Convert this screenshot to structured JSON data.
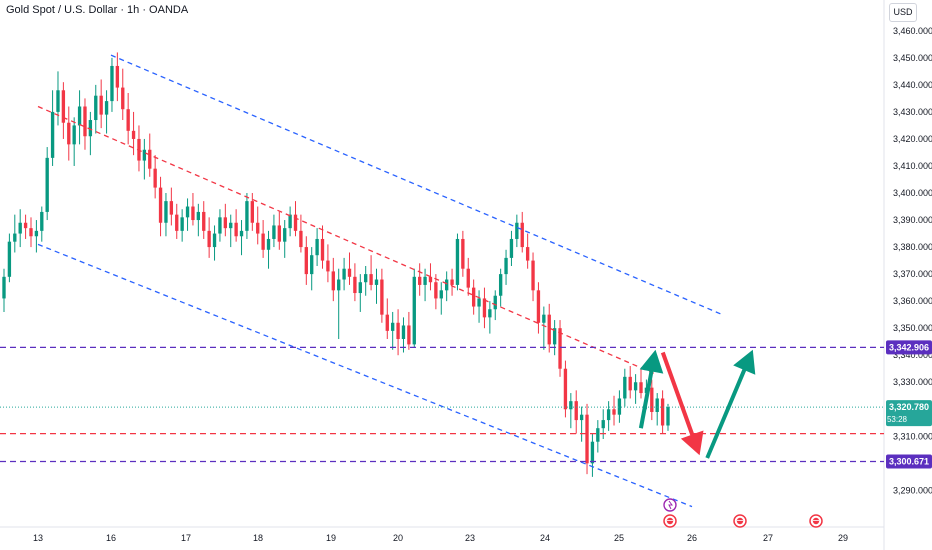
{
  "header": {
    "symbol_title": "Gold Spot / U.S. Dollar · 1h · OANDA",
    "currency": "USD"
  },
  "chart_data": {
    "type": "candlestick",
    "title": "Gold Spot / U.S. Dollar · 1h · OANDA",
    "y_axis": {
      "unit": "USD",
      "ylim": [
        3282,
        3464
      ],
      "ticks": [
        "3,290.000",
        "3,300.000",
        "3,310.000",
        "3,320.000",
        "3,330.000",
        "3,340.000",
        "3,350.000",
        "3,360.000",
        "3,370.000",
        "3,380.000",
        "3,390.000",
        "3,400.000",
        "3,410.000",
        "3,420.000",
        "3,430.000",
        "3,440.000",
        "3,450.000",
        "3,460.000"
      ]
    },
    "x_axis": {
      "ticks": [
        "13",
        "16",
        "17",
        "18",
        "19",
        "20",
        "23",
        "24",
        "25",
        "26",
        "27",
        "29"
      ]
    },
    "price_labels": [
      {
        "value": 3342.906,
        "text": "3,342.906",
        "color": "#5b2fbf"
      },
      {
        "value": 3320.78,
        "text": "3,320.780",
        "sub": "53:28",
        "color": "#26a69a"
      },
      {
        "value": 3300.671,
        "text": "3,300.671",
        "color": "#5b2fbf"
      }
    ],
    "horizontal_lines": [
      {
        "value": 3342.906,
        "color": "#5b2fbf",
        "style": "dashed"
      },
      {
        "value": 3311.0,
        "color": "#f23645",
        "style": "dashed"
      },
      {
        "value": 3300.671,
        "color": "#5b2fbf",
        "style": "dashed"
      },
      {
        "value": 3320.78,
        "color": "#26a69a",
        "style": "dotted"
      }
    ],
    "trend_lines": [
      {
        "name": "channel-top",
        "from": [
          "16",
          3451
        ],
        "to": [
          "26.4",
          3355
        ],
        "color": "#2962ff"
      },
      {
        "name": "channel-mid",
        "from": [
          "12.8",
          3432
        ],
        "to": [
          "25.5",
          3333
        ],
        "color": "#f23645"
      },
      {
        "name": "channel-bottom",
        "from": [
          "13",
          3381
        ],
        "to": [
          "26",
          3284
        ],
        "color": "#2962ff"
      }
    ],
    "arrows": [
      {
        "name": "up-arrow-1",
        "color": "#089981",
        "from": [
          "25.3",
          3313
        ],
        "to": [
          "25.5",
          3342
        ]
      },
      {
        "name": "down-arrow",
        "color": "#f23645",
        "from": [
          "25.6",
          3341
        ],
        "to": [
          "26.1",
          3303
        ]
      },
      {
        "name": "up-arrow-2",
        "color": "#089981",
        "from": [
          "26.2",
          3302
        ],
        "to": [
          "26.8",
          3342
        ]
      }
    ],
    "series": [
      {
        "name": "XAUUSD",
        "ohlc": [
          [
            3361.0,
            3372.0,
            3356.0,
            3369.0
          ],
          [
            3369.0,
            3385.0,
            3367.0,
            3382.0
          ],
          [
            3382.0,
            3392.0,
            3378.0,
            3385.0
          ],
          [
            3385.0,
            3394.0,
            3380.0,
            3389.0
          ],
          [
            3389.0,
            3392.0,
            3383.0,
            3387.0
          ],
          [
            3387.0,
            3391.0,
            3380.0,
            3384.0
          ],
          [
            3384.0,
            3390.0,
            3378.0,
            3386.0
          ],
          [
            3386.0,
            3395.0,
            3382.0,
            3393.0
          ],
          [
            3393.0,
            3417.0,
            3390.0,
            3413.0
          ],
          [
            3413.0,
            3438.0,
            3410.0,
            3430.0
          ],
          [
            3430.0,
            3445.0,
            3425.0,
            3438.0
          ],
          [
            3438.0,
            3441.0,
            3420.0,
            3426.0
          ],
          [
            3426.0,
            3432.0,
            3412.0,
            3418.0
          ],
          [
            3418.0,
            3428.0,
            3410.0,
            3425.0
          ],
          [
            3425.0,
            3438.0,
            3418.0,
            3432.0
          ],
          [
            3432.0,
            3435.0,
            3416.0,
            3421.0
          ],
          [
            3421.0,
            3430.0,
            3414.0,
            3427.0
          ],
          [
            3427.0,
            3440.0,
            3422.0,
            3436.0
          ],
          [
            3436.0,
            3442.0,
            3424.0,
            3429.0
          ],
          [
            3429.0,
            3438.0,
            3422.0,
            3434.0
          ],
          [
            3434.0,
            3450.0,
            3430.0,
            3447.0
          ],
          [
            3447.0,
            3452.0,
            3434.0,
            3439.0
          ],
          [
            3439.0,
            3446.0,
            3427.0,
            3431.0
          ],
          [
            3431.0,
            3437.0,
            3418.0,
            3423.0
          ],
          [
            3423.0,
            3430.0,
            3414.0,
            3420.0
          ],
          [
            3420.0,
            3425.0,
            3408.0,
            3412.0
          ],
          [
            3412.0,
            3420.0,
            3405.0,
            3416.0
          ],
          [
            3416.0,
            3422.0,
            3406.0,
            3409.0
          ],
          [
            3409.0,
            3414.0,
            3398.0,
            3402.0
          ],
          [
            3402.0,
            3406.0,
            3384.0,
            3389.0
          ],
          [
            3389.0,
            3400.0,
            3384.0,
            3397.0
          ],
          [
            3397.0,
            3402.0,
            3388.0,
            3392.0
          ],
          [
            3392.0,
            3396.0,
            3383.0,
            3386.0
          ],
          [
            3386.0,
            3394.0,
            3382.0,
            3391.0
          ],
          [
            3391.0,
            3398.0,
            3386.0,
            3395.0
          ],
          [
            3395.0,
            3400.0,
            3388.0,
            3390.0
          ],
          [
            3390.0,
            3396.0,
            3384.0,
            3393.0
          ],
          [
            3393.0,
            3397.0,
            3383.0,
            3386.0
          ],
          [
            3386.0,
            3391.0,
            3376.0,
            3380.0
          ],
          [
            3380.0,
            3388.0,
            3375.0,
            3385.0
          ],
          [
            3385.0,
            3394.0,
            3382.0,
            3391.0
          ],
          [
            3391.0,
            3396.0,
            3384.0,
            3387.0
          ],
          [
            3387.0,
            3392.0,
            3380.0,
            3389.0
          ],
          [
            3389.0,
            3394.0,
            3382.0,
            3384.0
          ],
          [
            3384.0,
            3390.0,
            3377.0,
            3386.0
          ],
          [
            3386.0,
            3400.0,
            3383.0,
            3397.0
          ],
          [
            3397.0,
            3400.0,
            3386.0,
            3389.0
          ],
          [
            3389.0,
            3395.0,
            3381.0,
            3385.0
          ],
          [
            3385.0,
            3390.0,
            3376.0,
            3379.0
          ],
          [
            3379.0,
            3386.0,
            3372.0,
            3383.0
          ],
          [
            3383.0,
            3392.0,
            3380.0,
            3388.0
          ],
          [
            3388.0,
            3393.0,
            3379.0,
            3382.0
          ],
          [
            3382.0,
            3390.0,
            3376.0,
            3387.0
          ],
          [
            3387.0,
            3395.0,
            3384.0,
            3392.0
          ],
          [
            3392.0,
            3397.0,
            3384.0,
            3386.0
          ],
          [
            3386.0,
            3392.0,
            3378.0,
            3380.0
          ],
          [
            3380.0,
            3384.0,
            3366.0,
            3370.0
          ],
          [
            3370.0,
            3380.0,
            3364.0,
            3377.0
          ],
          [
            3377.0,
            3387.0,
            3373.0,
            3383.0
          ],
          [
            3383.0,
            3388.0,
            3372.0,
            3375.0
          ],
          [
            3375.0,
            3381.0,
            3367.0,
            3371.0
          ],
          [
            3371.0,
            3376.0,
            3360.0,
            3364.0
          ],
          [
            3364.0,
            3372.0,
            3346.0,
            3368.0
          ],
          [
            3368.0,
            3376.0,
            3364.0,
            3372.0
          ],
          [
            3372.0,
            3378.0,
            3366.0,
            3369.0
          ],
          [
            3369.0,
            3374.0,
            3360.0,
            3363.0
          ],
          [
            3363.0,
            3370.0,
            3356.0,
            3367.0
          ],
          [
            3367.0,
            3373.0,
            3362.0,
            3370.0
          ],
          [
            3370.0,
            3377.0,
            3364.0,
            3366.0
          ],
          [
            3366.0,
            3372.0,
            3359.0,
            3368.0
          ],
          [
            3368.0,
            3372.0,
            3352.0,
            3355.0
          ],
          [
            3355.0,
            3361.0,
            3346.0,
            3349.0
          ],
          [
            3349.0,
            3356.0,
            3342.0,
            3352.0
          ],
          [
            3352.0,
            3357.0,
            3340.0,
            3346.0
          ],
          [
            3346.0,
            3354.0,
            3341.0,
            3351.0
          ],
          [
            3351.0,
            3356.0,
            3342.0,
            3344.0
          ],
          [
            3344.0,
            3372.0,
            3343.0,
            3369.0
          ],
          [
            3369.0,
            3374.0,
            3362.0,
            3366.0
          ],
          [
            3366.0,
            3372.0,
            3360.0,
            3369.0
          ],
          [
            3369.0,
            3374.0,
            3364.0,
            3367.0
          ],
          [
            3367.0,
            3370.0,
            3357.0,
            3361.0
          ],
          [
            3361.0,
            3367.0,
            3355.0,
            3364.0
          ],
          [
            3364.0,
            3371.0,
            3360.0,
            3368.0
          ],
          [
            3368.0,
            3372.0,
            3362.0,
            3366.0
          ],
          [
            3366.0,
            3385.0,
            3364.0,
            3383.0
          ],
          [
            3383.0,
            3386.0,
            3369.0,
            3372.0
          ],
          [
            3372.0,
            3376.0,
            3362.0,
            3365.0
          ],
          [
            3365.0,
            3368.0,
            3355.0,
            3358.0
          ],
          [
            3358.0,
            3364.0,
            3352.0,
            3361.0
          ],
          [
            3361.0,
            3365.0,
            3350.0,
            3354.0
          ],
          [
            3354.0,
            3360.0,
            3348.0,
            3357.0
          ],
          [
            3357.0,
            3364.0,
            3353.0,
            3362.0
          ],
          [
            3362.0,
            3372.0,
            3358.0,
            3370.0
          ],
          [
            3370.0,
            3379.0,
            3366.0,
            3376.0
          ],
          [
            3376.0,
            3386.0,
            3373.0,
            3383.0
          ],
          [
            3383.0,
            3392.0,
            3380.0,
            3389.0
          ],
          [
            3389.0,
            3393.0,
            3378.0,
            3380.0
          ],
          [
            3380.0,
            3385.0,
            3372.0,
            3375.0
          ],
          [
            3375.0,
            3378.0,
            3360.0,
            3364.0
          ],
          [
            3364.0,
            3367.0,
            3348.0,
            3352.0
          ],
          [
            3352.0,
            3358.0,
            3342.0,
            3355.0
          ],
          [
            3355.0,
            3359.0,
            3341.0,
            3344.0
          ],
          [
            3344.0,
            3353.0,
            3340.0,
            3350.0
          ],
          [
            3350.0,
            3353.0,
            3332.0,
            3335.0
          ],
          [
            3335.0,
            3338.0,
            3317.0,
            3320.0
          ],
          [
            3320.0,
            3326.0,
            3313.0,
            3323.0
          ],
          [
            3323.0,
            3327.0,
            3311.0,
            3316.0
          ],
          [
            3316.0,
            3321.0,
            3308.0,
            3318.0
          ],
          [
            3318.0,
            3322.0,
            3296.0,
            3300.0
          ],
          [
            3300.0,
            3311.0,
            3295.0,
            3308.0
          ],
          [
            3308.0,
            3316.0,
            3304.0,
            3313.0
          ],
          [
            3313.0,
            3320.0,
            3309.0,
            3316.0
          ],
          [
            3316.0,
            3323.0,
            3312.0,
            3320.0
          ],
          [
            3320.0,
            3325.0,
            3314.0,
            3318.0
          ],
          [
            3318.0,
            3327.0,
            3315.0,
            3324.0
          ],
          [
            3324.0,
            3335.0,
            3321.0,
            3332.0
          ],
          [
            3332.0,
            3336.0,
            3324.0,
            3327.0
          ],
          [
            3327.0,
            3333.0,
            3322.0,
            3330.0
          ],
          [
            3330.0,
            3335.0,
            3324.0,
            3326.0
          ],
          [
            3326.0,
            3331.0,
            3320.0,
            3328.0
          ],
          [
            3328.0,
            3331.0,
            3316.0,
            3319.0
          ],
          [
            3319.0,
            3326.0,
            3314.0,
            3324.0
          ],
          [
            3324.0,
            3327.0,
            3311.0,
            3314.0
          ],
          [
            3314.0,
            3322.0,
            3312.0,
            3320.8
          ]
        ]
      }
    ]
  }
}
